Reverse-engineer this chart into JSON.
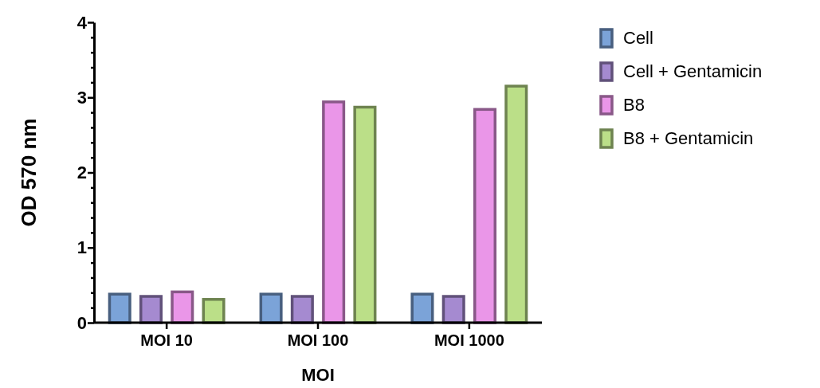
{
  "chart_data": {
    "type": "bar",
    "xlabel": "MOI",
    "ylabel": "OD 570 nm",
    "categories": [
      "MOI 10",
      "MOI 100",
      "MOI 1000"
    ],
    "series": [
      {
        "name": "Cell",
        "color": "#7ba3d8",
        "values": [
          0.38,
          0.38,
          0.38
        ]
      },
      {
        "name": "Cell + Gentamicin",
        "color": "#a58ad0",
        "values": [
          0.35,
          0.35,
          0.35
        ]
      },
      {
        "name": "B8",
        "color": "#ea96e8",
        "values": [
          0.41,
          2.94,
          2.84
        ]
      },
      {
        "name": "B8 + Gentamicin",
        "color": "#bbdf88",
        "values": [
          0.31,
          2.87,
          3.15
        ]
      }
    ],
    "ylim": [
      0,
      4
    ],
    "yticks": [
      0,
      {
        "value": 0.2,
        "label": null
      },
      {
        "value": 0.4,
        "label": null
      },
      {
        "value": 0.6,
        "label": null
      },
      {
        "value": 0.8,
        "label": null
      },
      1,
      {
        "value": 1.2,
        "label": null
      },
      {
        "value": 1.4,
        "label": null
      },
      {
        "value": 1.6,
        "label": null
      },
      {
        "value": 1.8,
        "label": null
      },
      2,
      {
        "value": 2.2,
        "label": null
      },
      {
        "value": 2.4,
        "label": null
      },
      {
        "value": 2.6,
        "label": null
      },
      {
        "value": 2.8,
        "label": null
      },
      3,
      {
        "value": 3.2,
        "label": null
      },
      {
        "value": 3.4,
        "label": null
      },
      {
        "value": 3.6,
        "label": null
      },
      {
        "value": 3.8,
        "label": null
      },
      4
    ],
    "legend": "right"
  }
}
